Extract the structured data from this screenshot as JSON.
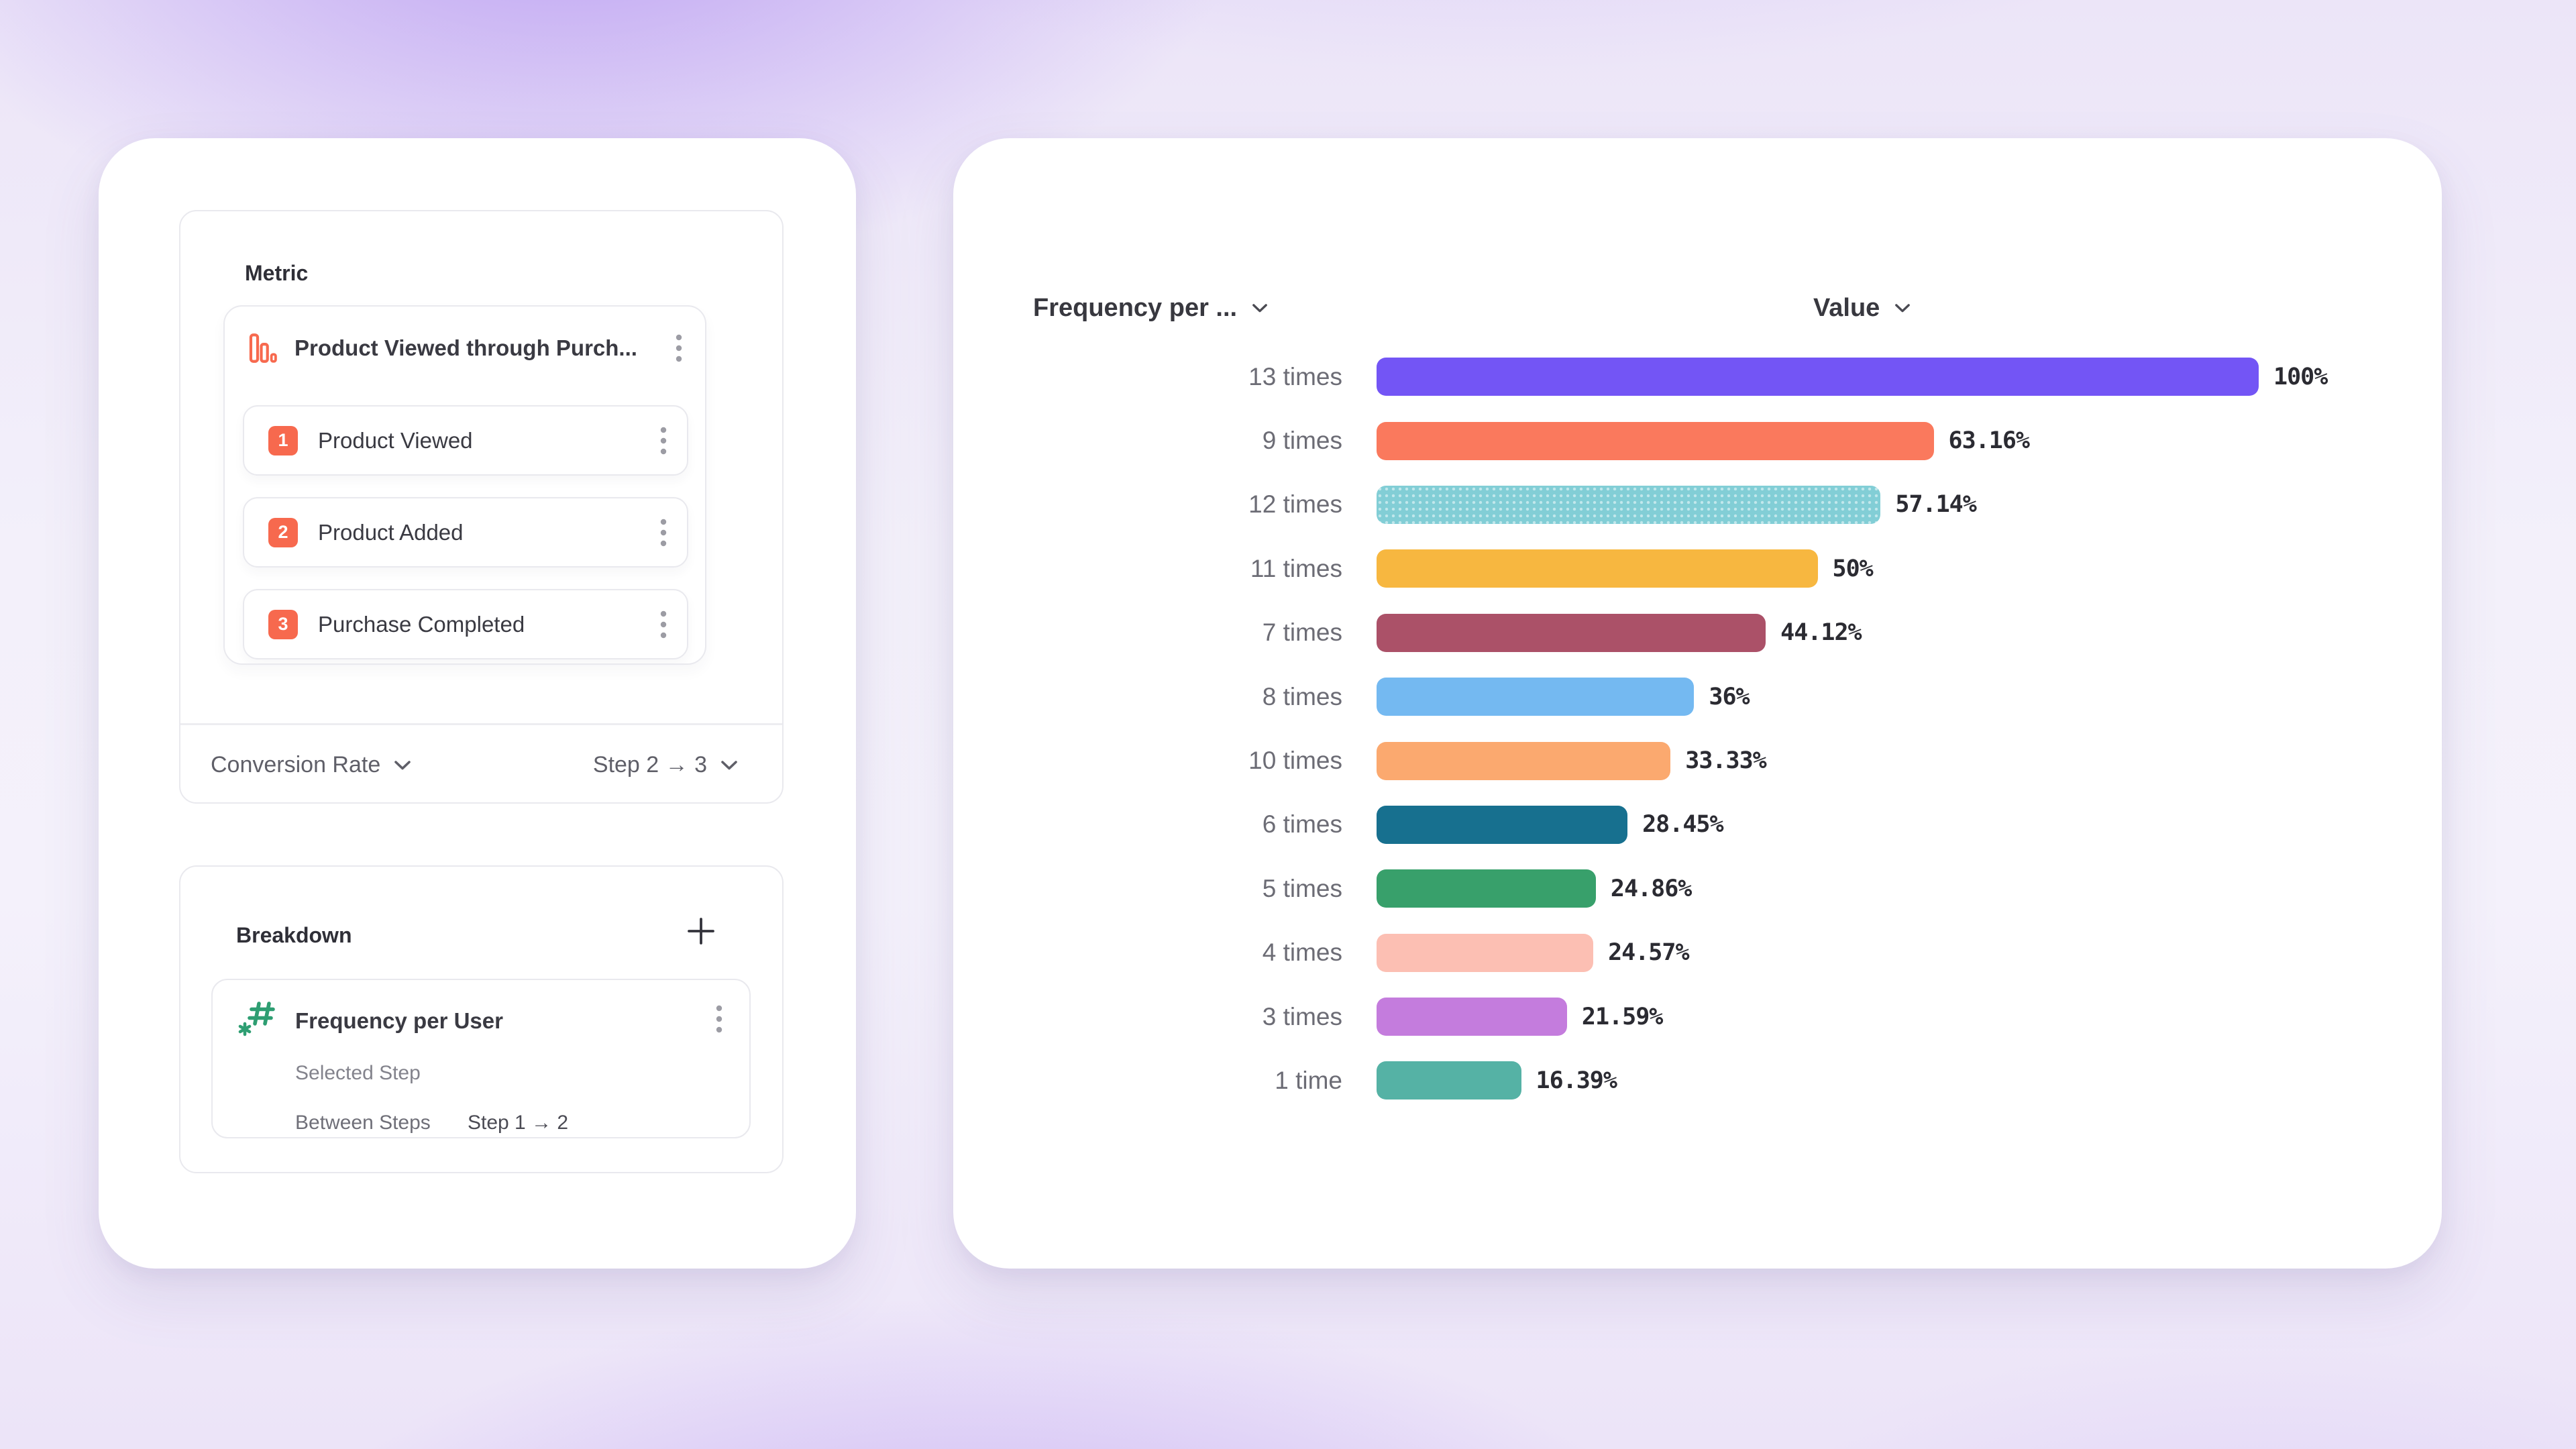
{
  "left_panel": {
    "metric_section": {
      "title": "Metric",
      "funnel": {
        "icon": "funnel-bars-icon",
        "icon_color": "#F7694E",
        "name": "Product Viewed through Purch...",
        "steps": [
          {
            "number": "1",
            "label": "Product Viewed"
          },
          {
            "number": "2",
            "label": "Product Added"
          },
          {
            "number": "3",
            "label": "Purchase Completed"
          }
        ],
        "step_badge_color": "#F7694E"
      },
      "footer": {
        "measurement": {
          "label": "Conversion Rate",
          "icon": "chevron-down-icon"
        },
        "step_range": {
          "label": "Step 2 → 3",
          "icon": "chevron-down-icon"
        }
      }
    },
    "breakdown_section": {
      "title": "Breakdown",
      "add_button": "+",
      "property": {
        "icon": "numeric-property-icon",
        "icon_color": "#2E9E72",
        "name": "Frequency per User",
        "options": [
          {
            "label": "Selected Step",
            "value": ""
          },
          {
            "label": "Between Steps",
            "value": "Step 1 → 2"
          }
        ]
      }
    }
  },
  "chart_data": {
    "type": "bar",
    "orientation": "horizontal",
    "category_header": "Frequency per ...",
    "value_header": "Value",
    "xlim": [
      0,
      100
    ],
    "grid": false,
    "legend": false,
    "categories": [
      "13 times",
      "9 times",
      "12 times",
      "11 times",
      "7 times",
      "8 times",
      "10 times",
      "6 times",
      "5 times",
      "4 times",
      "3 times",
      "1 time"
    ],
    "values": [
      100,
      63.16,
      57.14,
      50,
      44.12,
      36,
      33.33,
      28.45,
      24.86,
      24.57,
      21.59,
      16.39
    ],
    "value_labels": [
      "100%",
      "63.16%",
      "57.14%",
      "50%",
      "44.12%",
      "36%",
      "33.33%",
      "28.45%",
      "24.86%",
      "24.57%",
      "21.59%",
      "16.39%"
    ],
    "bar_colors": [
      "#7355F5",
      "#FA795D",
      "#82CED6",
      "#F7B740",
      "#AB5168",
      "#74B9F1",
      "#FBA96F",
      "#17708F",
      "#38A06B",
      "#FCBFB3",
      "#C47CDD",
      "#55B2A5"
    ],
    "bar_patterns": [
      null,
      null,
      "dotted",
      null,
      null,
      null,
      null,
      null,
      null,
      null,
      null,
      null
    ]
  }
}
